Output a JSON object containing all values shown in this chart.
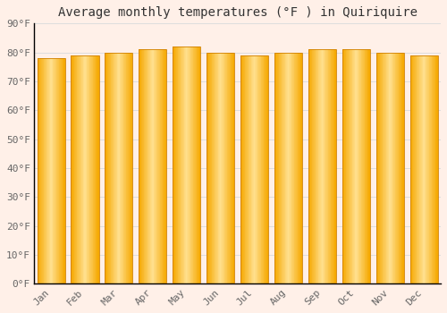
{
  "title": "Average monthly temperatures (°F ) in Quiriquire",
  "months": [
    "Jan",
    "Feb",
    "Mar",
    "Apr",
    "May",
    "Jun",
    "Jul",
    "Aug",
    "Sep",
    "Oct",
    "Nov",
    "Dec"
  ],
  "values": [
    78,
    79,
    80,
    81,
    82,
    80,
    79,
    80,
    81,
    81,
    80,
    79
  ],
  "bar_center_color": "#FFE090",
  "bar_edge_color": "#F5A800",
  "background_color": "#FFF0E8",
  "plot_bg_color": "#FFF0E8",
  "grid_color": "#DDDDDD",
  "ylim": [
    0,
    90
  ],
  "yticks": [
    0,
    10,
    20,
    30,
    40,
    50,
    60,
    70,
    80,
    90
  ],
  "ytick_labels": [
    "0°F",
    "10°F",
    "20°F",
    "30°F",
    "40°F",
    "50°F",
    "60°F",
    "70°F",
    "80°F",
    "90°F"
  ],
  "title_fontsize": 10,
  "tick_fontsize": 8,
  "font_family": "monospace",
  "bar_width": 0.82
}
